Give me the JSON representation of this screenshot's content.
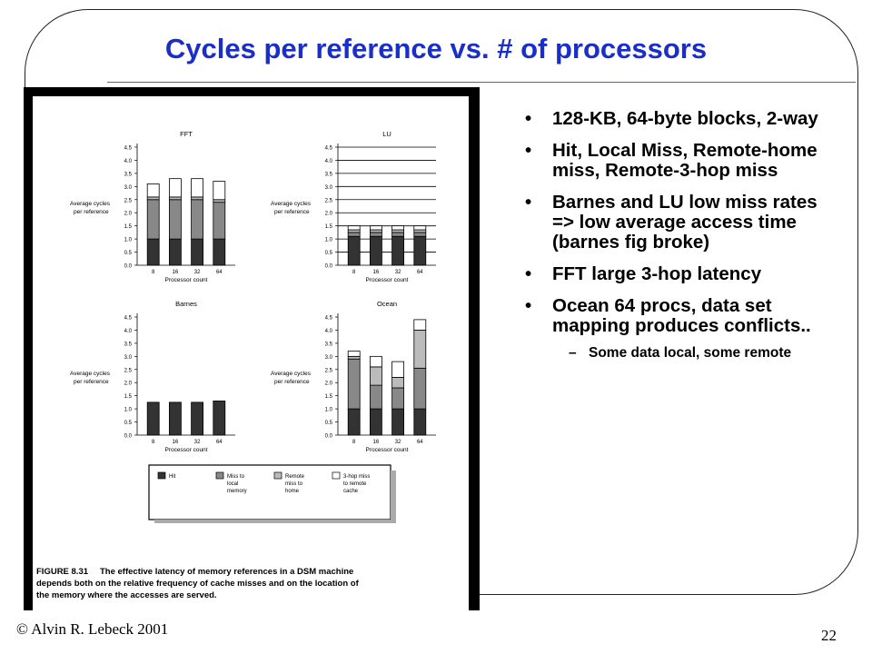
{
  "slide": {
    "title": "Cycles per reference vs. # of processors",
    "bullets": [
      "128-KB, 64-byte blocks, 2-way",
      "Hit, Local Miss, Remote-home miss, Remote-3-hop miss",
      "Barnes and LU low miss rates => low average access time (barnes fig broke)",
      "FFT large 3-hop latency",
      "Ocean 64 procs, data set mapping produces conflicts.."
    ],
    "sub_bullets": [
      "Some data local, some remote"
    ],
    "footer_left": "© Alvin R. Lebeck 2001",
    "page_number": "22"
  },
  "caption": {
    "label": "FIGURE 8.31",
    "text": "The effective latency of memory references in a DSM machine depends both on the relative frequency of cache misses and on the location of the memory where the accesses are served."
  },
  "legend": {
    "entries": [
      {
        "label": "Hit",
        "color": "#333333"
      },
      {
        "label": "Miss to local memory",
        "color": "#888888"
      },
      {
        "label": "Remote miss to home",
        "color": "#bbbbbb"
      },
      {
        "label": "3-hop miss to remote cache",
        "color": "#ffffff"
      }
    ]
  },
  "chart_data": [
    {
      "type": "bar",
      "title": "FFT",
      "ylabel": "Average cycles per reference",
      "xlabel": "Processor count",
      "categories": [
        "8",
        "16",
        "32",
        "64"
      ],
      "yticks": [
        "0.0",
        "0.5",
        "1.0",
        "1.5",
        "2.0",
        "2.5",
        "3.0",
        "3.5",
        "4.0",
        "4.5"
      ],
      "ylim": [
        0,
        4.5
      ],
      "stacked": true,
      "series": [
        {
          "name": "Hit",
          "values": [
            1.0,
            1.0,
            1.0,
            1.0
          ]
        },
        {
          "name": "Miss to local memory",
          "values": [
            1.5,
            1.5,
            1.5,
            1.4
          ]
        },
        {
          "name": "Remote miss to home",
          "values": [
            0.1,
            0.1,
            0.1,
            0.1
          ]
        },
        {
          "name": "3-hop miss to remote cache",
          "values": [
            0.5,
            0.7,
            0.7,
            0.7
          ]
        }
      ]
    },
    {
      "type": "bar",
      "title": "LU",
      "ylabel": "Average cycles per reference",
      "xlabel": "Processor count",
      "categories": [
        "8",
        "16",
        "32",
        "64"
      ],
      "yticks": [
        "0.0",
        "0.5",
        "1.0",
        "1.5",
        "2.0",
        "2.5",
        "3.0",
        "3.5",
        "4.0",
        "4.5"
      ],
      "ylim": [
        0,
        4.5
      ],
      "stacked": true,
      "grid": true,
      "series": [
        {
          "name": "Hit",
          "values": [
            1.1,
            1.1,
            1.1,
            1.1
          ]
        },
        {
          "name": "Miss to local memory",
          "values": [
            0.15,
            0.15,
            0.15,
            0.15
          ]
        },
        {
          "name": "Remote miss to home",
          "values": [
            0.1,
            0.1,
            0.1,
            0.1
          ]
        },
        {
          "name": "3-hop miss to remote cache",
          "values": [
            0.15,
            0.15,
            0.15,
            0.15
          ]
        }
      ]
    },
    {
      "type": "bar",
      "title": "Barnes",
      "ylabel": "Average cycles per reference",
      "xlabel": "Processor count",
      "categories": [
        "8",
        "16",
        "32",
        "64"
      ],
      "yticks": [
        "0.0",
        "0.5",
        "1.0",
        "1.5",
        "2.0",
        "2.5",
        "3.0",
        "3.5",
        "4.0",
        "4.5"
      ],
      "ylim": [
        0,
        4.5
      ],
      "stacked": true,
      "series": [
        {
          "name": "Hit",
          "values": [
            1.25,
            1.25,
            1.25,
            1.3
          ]
        },
        {
          "name": "Miss to local memory",
          "values": [
            0,
            0,
            0,
            0
          ]
        },
        {
          "name": "Remote miss to home",
          "values": [
            0,
            0,
            0,
            0
          ]
        },
        {
          "name": "3-hop miss to remote cache",
          "values": [
            0,
            0,
            0,
            0
          ]
        }
      ]
    },
    {
      "type": "bar",
      "title": "Ocean",
      "ylabel": "Average cycles per reference",
      "xlabel": "Processor count",
      "categories": [
        "8",
        "16",
        "32",
        "64"
      ],
      "yticks": [
        "0.0",
        "0.5",
        "1.0",
        "1.5",
        "2.0",
        "2.5",
        "3.0",
        "3.5",
        "4.0",
        "4.5"
      ],
      "ylim": [
        0,
        4.5
      ],
      "stacked": true,
      "series": [
        {
          "name": "Hit",
          "values": [
            1.0,
            1.0,
            1.0,
            1.0
          ]
        },
        {
          "name": "Miss to local memory",
          "values": [
            1.9,
            0.9,
            0.8,
            1.55
          ]
        },
        {
          "name": "Remote miss to home",
          "values": [
            0.1,
            0.7,
            0.4,
            1.45
          ]
        },
        {
          "name": "3-hop miss to remote cache",
          "values": [
            0.2,
            0.4,
            0.6,
            0.4
          ]
        }
      ]
    }
  ]
}
